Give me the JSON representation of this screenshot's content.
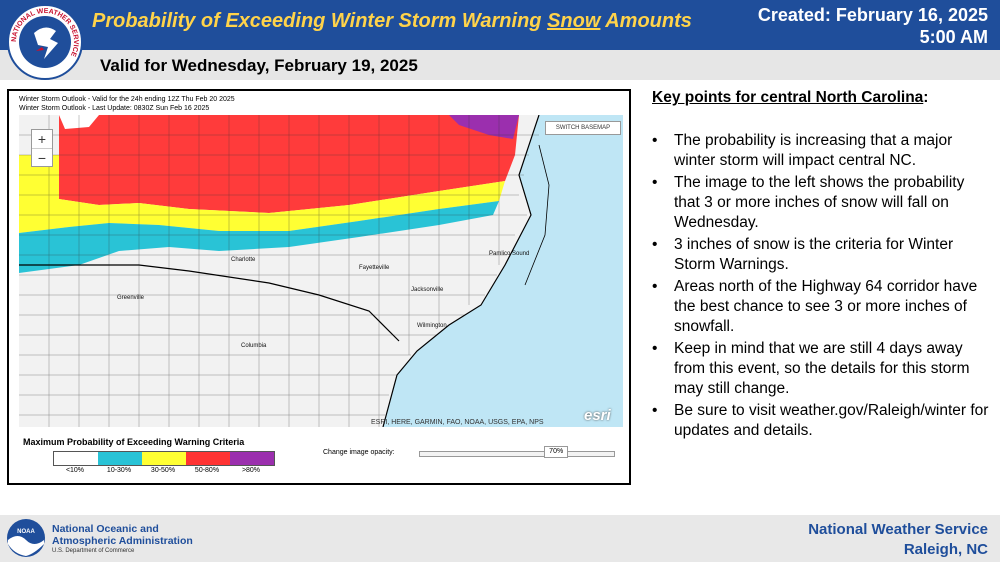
{
  "header": {
    "title_prefix": "Probability of Exceeding Winter Storm Warning ",
    "title_underlined": "Snow",
    "title_suffix": " Amounts",
    "created_line1": "Created: February 16, 2025",
    "created_line2": "5:00 AM",
    "valid": "Valid for Wednesday, February 19, 2025",
    "logo_text": "NATIONAL WEATHER SERVICE"
  },
  "map": {
    "header_line1": "Winter Storm Outlook - Valid for the 24h ending 12Z Thu Feb 20 2025",
    "header_line2": "Winter Storm Outlook - Last Update: 0830Z Sun Feb 16 2025",
    "zoom_in": "+",
    "zoom_out": "−",
    "switch_basemap": "SWITCH BASEMAP",
    "credits": "ESRI, HERE, GARMIN, FAO, NOAA, USGS, EPA, NPS",
    "esri_logo": "esri",
    "legend_title": "Maximum Probability of Exceeding Warning Criteria",
    "legend": [
      {
        "label": "<10%",
        "color": "#ffffff"
      },
      {
        "label": "10-30%",
        "color": "#29c3d6"
      },
      {
        "label": "30-50%",
        "color": "#ffff33"
      },
      {
        "label": "50-80%",
        "color": "#ff3333"
      },
      {
        "label": ">80%",
        "color": "#9b2fae"
      }
    ],
    "opacity_label": "Change image opacity:",
    "opacity_value": "70%",
    "opacity_fraction": 0.7,
    "city_labels": [
      "Charlotte",
      "Fayetteville",
      "Greenville",
      "Jacksonville",
      "Wilmington",
      "Columbia",
      "Pamlico Sound"
    ]
  },
  "keypoints": {
    "title": "Key points for central North Carolina",
    "title_suffix": ":",
    "items": [
      "The probability is increasing that a major winter storm will impact central NC.",
      "The image to the left shows the probability that 3 or more inches of snow will fall on Wednesday.",
      "3 inches of snow is the criteria for Winter Storm Warnings.",
      "Areas north of the Highway 64 corridor have the best chance to see 3 or more inches of snowfall.",
      "Keep in mind that we are still 4 days away from this event, so the details for this storm may still change.",
      "Be sure to visit weather.gov/Raleigh/winter for updates and details."
    ]
  },
  "footer": {
    "noaa_line1": "National Oceanic and",
    "noaa_line2": "Atmospheric Administration",
    "noaa_dept": "U.S. Department of Commerce",
    "noaa_logo_text": "NOAA",
    "nws_line1": "National Weather Service",
    "nws_line2": "Raleigh, NC"
  },
  "colors": {
    "header_blue": "#1f4e9b",
    "title_gold": "#ffd34a",
    "ocean": "#bfe6f5"
  }
}
